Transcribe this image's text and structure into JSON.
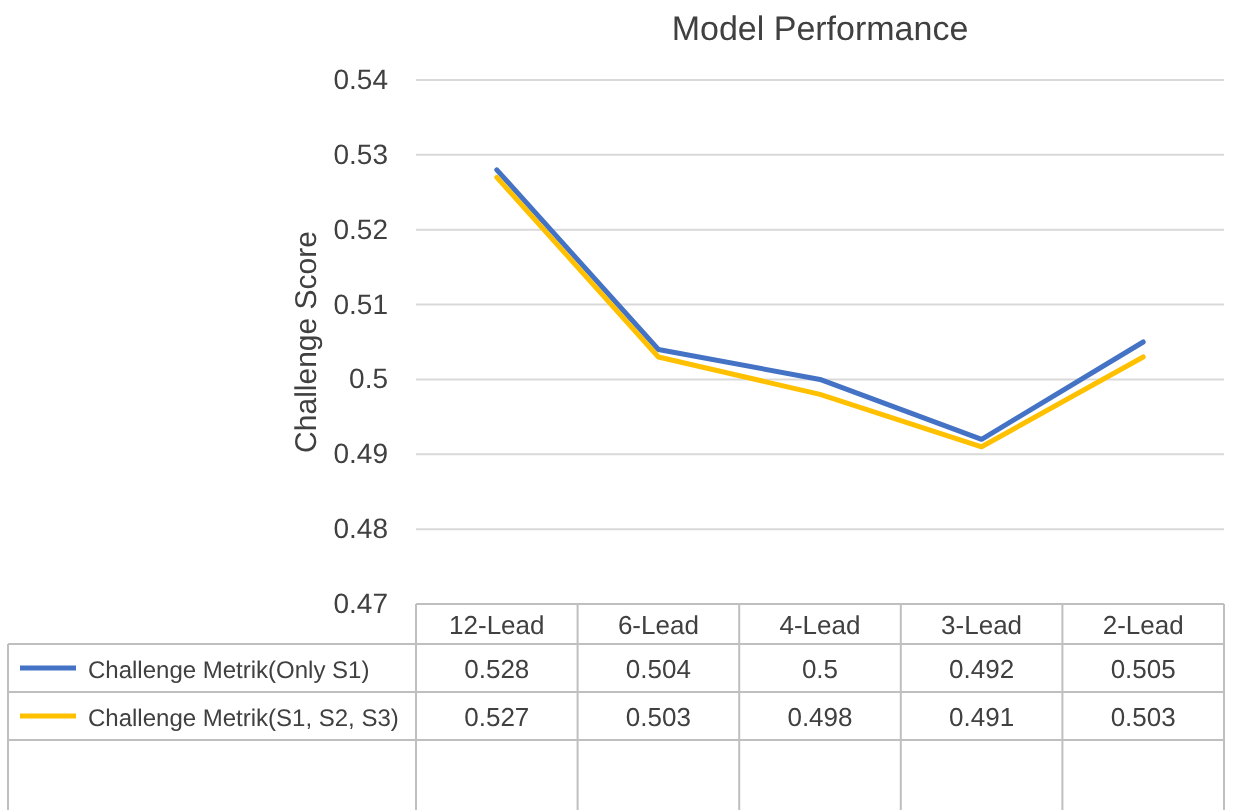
{
  "chart_data": {
    "type": "line",
    "title": "Model Performance",
    "ylabel": "Challenge Score",
    "categories": [
      "12-Lead",
      "6-Lead",
      "4-Lead",
      "3-Lead",
      "2-Lead"
    ],
    "series": [
      {
        "name": "Challenge Metrik(Only S1)",
        "color": "#4472c4",
        "values": [
          0.528,
          0.504,
          0.5,
          0.492,
          0.505
        ]
      },
      {
        "name": "Challenge Metrik(S1, S2, S3)",
        "color": "#ffc000",
        "values": [
          0.527,
          0.503,
          0.498,
          0.491,
          0.503
        ]
      }
    ],
    "ylim": [
      0.47,
      0.54
    ],
    "yticks": [
      0.47,
      0.48,
      0.49,
      0.5,
      0.51,
      0.52,
      0.53,
      0.54
    ],
    "grid": "y",
    "legend": "bottom",
    "data_labels": true,
    "marker": "none",
    "line_style": "solid"
  }
}
